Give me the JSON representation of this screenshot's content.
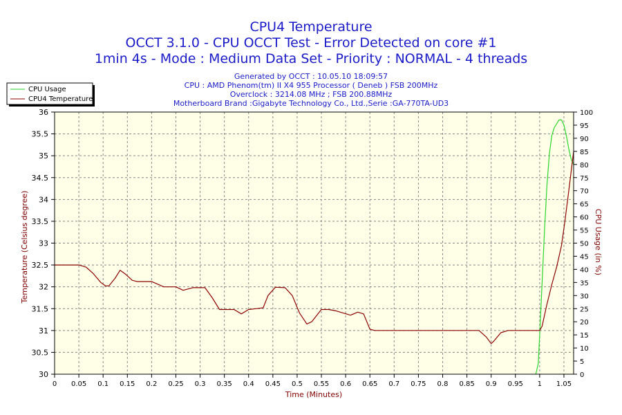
{
  "titles": [
    "CPU4 Temperature",
    "OCCT 3.1.0 - CPU OCCT Test - Error Detected on core #1",
    "1min 4s - Mode : Medium Data Set - Priority : NORMAL - 4 threads"
  ],
  "info_lines": [
    "Generated by OCCT : 10.05.10 18:09:57",
    "CPU : AMD Phenom(tm) II X4 955 Processor ( Deneb ) FSB 200MHz",
    "Overclock : 3214.08 MHz ; FSB 200.88MHz",
    "Motherboard Brand :Gigabyte Technology Co., Ltd.,Serie :GA-770TA-UD3"
  ],
  "colors": {
    "plot_bg": "#ffffe8",
    "grid": "#888888",
    "title": "#1a1ac8",
    "axis_title": "#800000",
    "cpu_usage": "#2ad42a",
    "cpu_temp": "#8b0000"
  },
  "chart_data": {
    "type": "line",
    "xlabel": "Time (Minutes)",
    "ylabel_left": "Temperature (Celsius degree)",
    "ylabel_right": "CPU Usage (in %)",
    "xlim": [
      0,
      1.07
    ],
    "ylim_left": [
      30,
      36
    ],
    "ylim_right": [
      0,
      100
    ],
    "x_ticks": [
      "0",
      "0.05",
      "0.1",
      "0.15",
      "0.2",
      "0.25",
      "0.3",
      "0.35",
      "0.4",
      "0.45",
      "0.5",
      "0.55",
      "0.6",
      "0.65",
      "0.7",
      "0.75",
      "0.8",
      "0.85",
      "0.9",
      "0.95",
      "1",
      "1.05"
    ],
    "y_ticks_left": [
      "30",
      "30.5",
      "31",
      "31.5",
      "32",
      "32.5",
      "33",
      "33.5",
      "34",
      "34.5",
      "35",
      "35.5",
      "36"
    ],
    "y_ticks_right": [
      "0",
      "5",
      "10",
      "15",
      "20",
      "25",
      "30",
      "35",
      "40",
      "45",
      "50",
      "55",
      "60",
      "65",
      "70",
      "75",
      "80",
      "85",
      "90",
      "95",
      "100"
    ],
    "grid": true,
    "legend_position": "top-left, outside plot",
    "series": [
      {
        "name": "CPU Usage",
        "axis": "right",
        "color": "#2ad42a",
        "x": [
          0.992,
          0.997,
          1.0,
          1.005,
          1.01,
          1.015,
          1.02,
          1.025,
          1.03,
          1.04,
          1.045,
          1.05,
          1.055,
          1.06,
          1.065,
          1.07
        ],
        "y": [
          0,
          4,
          15,
          35,
          55,
          72,
          84,
          91,
          94,
          97,
          97,
          95,
          91,
          86,
          82,
          80
        ]
      },
      {
        "name": "CPU4 Temperature",
        "axis": "left",
        "color": "#8b0000",
        "x": [
          0,
          0.05,
          0.065,
          0.08,
          0.095,
          0.105,
          0.112,
          0.125,
          0.135,
          0.145,
          0.16,
          0.17,
          0.2,
          0.225,
          0.25,
          0.265,
          0.285,
          0.31,
          0.325,
          0.34,
          0.355,
          0.37,
          0.385,
          0.4,
          0.415,
          0.43,
          0.44,
          0.455,
          0.475,
          0.49,
          0.505,
          0.52,
          0.53,
          0.55,
          0.565,
          0.58,
          0.595,
          0.61,
          0.625,
          0.637,
          0.65,
          0.66,
          0.7,
          0.75,
          0.8,
          0.85,
          0.875,
          0.89,
          0.9,
          0.905,
          0.92,
          0.935,
          0.95,
          1.0,
          1.005,
          1.015,
          1.025,
          1.035,
          1.045,
          1.052,
          1.06,
          1.07
        ],
        "y": [
          32.5,
          32.5,
          32.45,
          32.3,
          32.1,
          32.02,
          32.02,
          32.2,
          32.38,
          32.3,
          32.15,
          32.12,
          32.12,
          32.0,
          32.0,
          31.92,
          31.98,
          31.98,
          31.75,
          31.48,
          31.48,
          31.48,
          31.38,
          31.48,
          31.5,
          31.52,
          31.8,
          31.99,
          31.98,
          31.8,
          31.4,
          31.15,
          31.2,
          31.48,
          31.48,
          31.45,
          31.4,
          31.35,
          31.42,
          31.38,
          31.03,
          31.0,
          31.0,
          31.0,
          31.0,
          31.0,
          31.0,
          30.85,
          30.7,
          30.75,
          30.95,
          31.0,
          31.0,
          31.0,
          31.1,
          31.6,
          32.05,
          32.45,
          32.95,
          33.5,
          34.2,
          35.1
        ]
      }
    ]
  }
}
